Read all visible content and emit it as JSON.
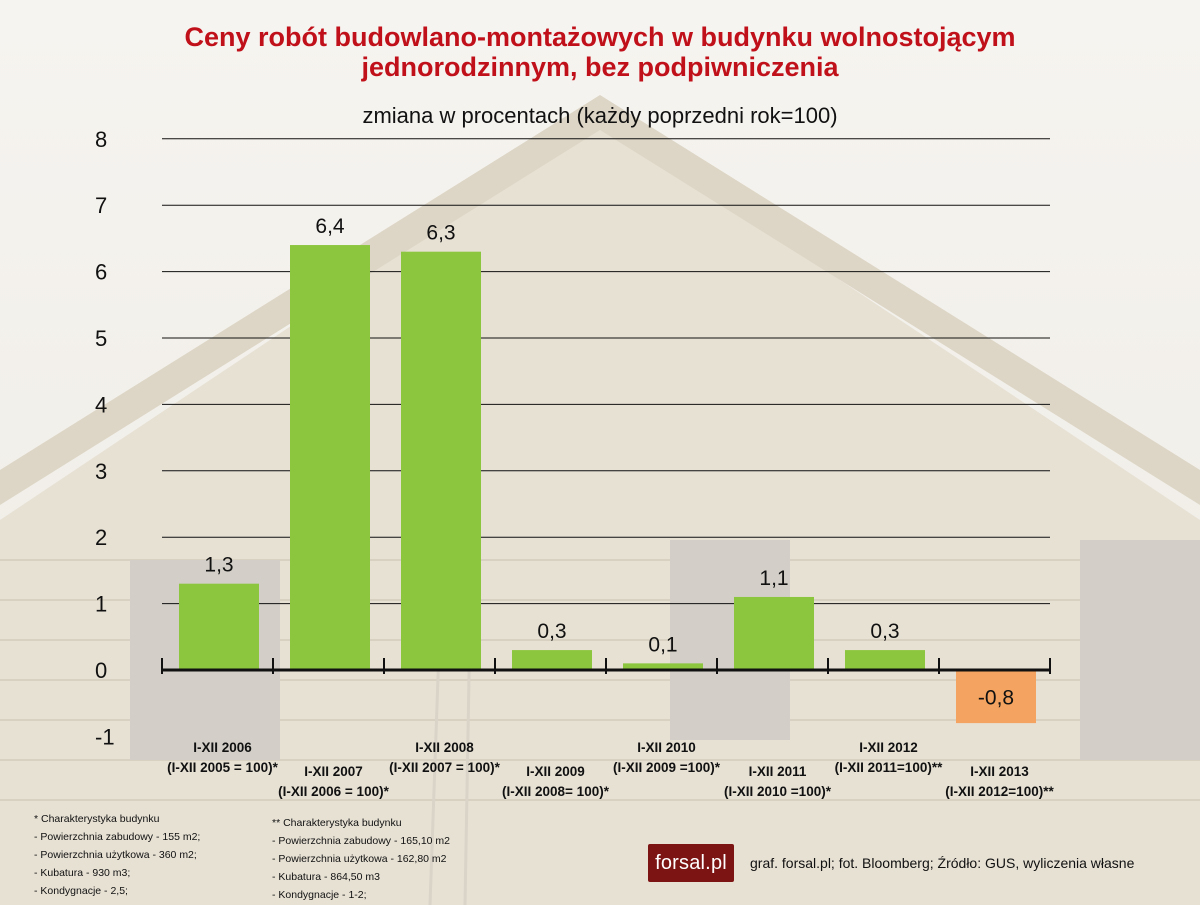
{
  "header": {
    "title_line1": "Ceny robót budowlano-montażowych w budynku wolnostojącym",
    "title_line2": "jednorodzinnym, bez podpiwniczenia",
    "subtitle": "zmiana w procentach (każdy poprzedni rok=100)"
  },
  "chart_data": {
    "type": "bar",
    "title": "Ceny robót budowlano-montażowych w budynku wolnostojącym jednorodzinnym, bez podpiwniczenia",
    "subtitle": "zmiana w procentach (każdy poprzedni rok=100)",
    "categories": [
      [
        "I-XII 2006",
        "(I-XII 2005 = 100)*"
      ],
      [
        "I-XII 2007",
        "(I-XII 2006 = 100)*"
      ],
      [
        "I-XII 2008",
        "(I-XII 2007 = 100)*"
      ],
      [
        "I-XII 2009",
        "(I-XII 2008= 100)*"
      ],
      [
        "I-XII 2010",
        "(I-XII 2009 =100)*"
      ],
      [
        "I-XII 2011",
        "(I-XII 2010 =100)*"
      ],
      [
        "I-XII 2012",
        "(I-XII 2011=100)**"
      ],
      [
        "I-XII 2013",
        "(I-XII 2012=100)**"
      ]
    ],
    "values": [
      1.3,
      6.4,
      6.3,
      0.3,
      0.1,
      1.1,
      0.3,
      -0.8
    ],
    "value_labels": [
      "1,3",
      "6,4",
      "6,3",
      "0,3",
      "0,1",
      "1,1",
      "0,3",
      "-0,8"
    ],
    "label_stagger": [
      "high",
      "low",
      "high",
      "low",
      "high",
      "low",
      "high",
      "low"
    ],
    "ylim": [
      -1,
      8
    ],
    "yticks": [
      -1,
      0,
      1,
      2,
      3,
      4,
      5,
      6,
      7,
      8
    ],
    "grid": true,
    "colors": {
      "positive": "#8cc63f",
      "negative": "#f4a460",
      "grid": "#111111",
      "title": "#c0101a"
    }
  },
  "notes": {
    "left": {
      "heading": "* Charakterystyka budynku",
      "items": [
        "- Powierzchnia zabudowy - 155 m2;",
        "- Powierzchnia użytkowa - 360 m2;",
        "- Kubatura - 930 m3;",
        "- Kondygnacje - 2,5;"
      ]
    },
    "right": {
      "heading": "** Charakterystyka budynku",
      "items": [
        "- Powierzchnia zabudowy - 165,10 m2",
        "- Powierzchnia użytkowa - 162,80 m2",
        "- Kubatura - 864,50 m3",
        "- Kondygnacje - 1-2;"
      ]
    }
  },
  "footer": {
    "logo": "forsal.pl",
    "source": "graf. forsal.pl;  fot. Bloomberg; Źródło: GUS, wyliczenia własne"
  }
}
